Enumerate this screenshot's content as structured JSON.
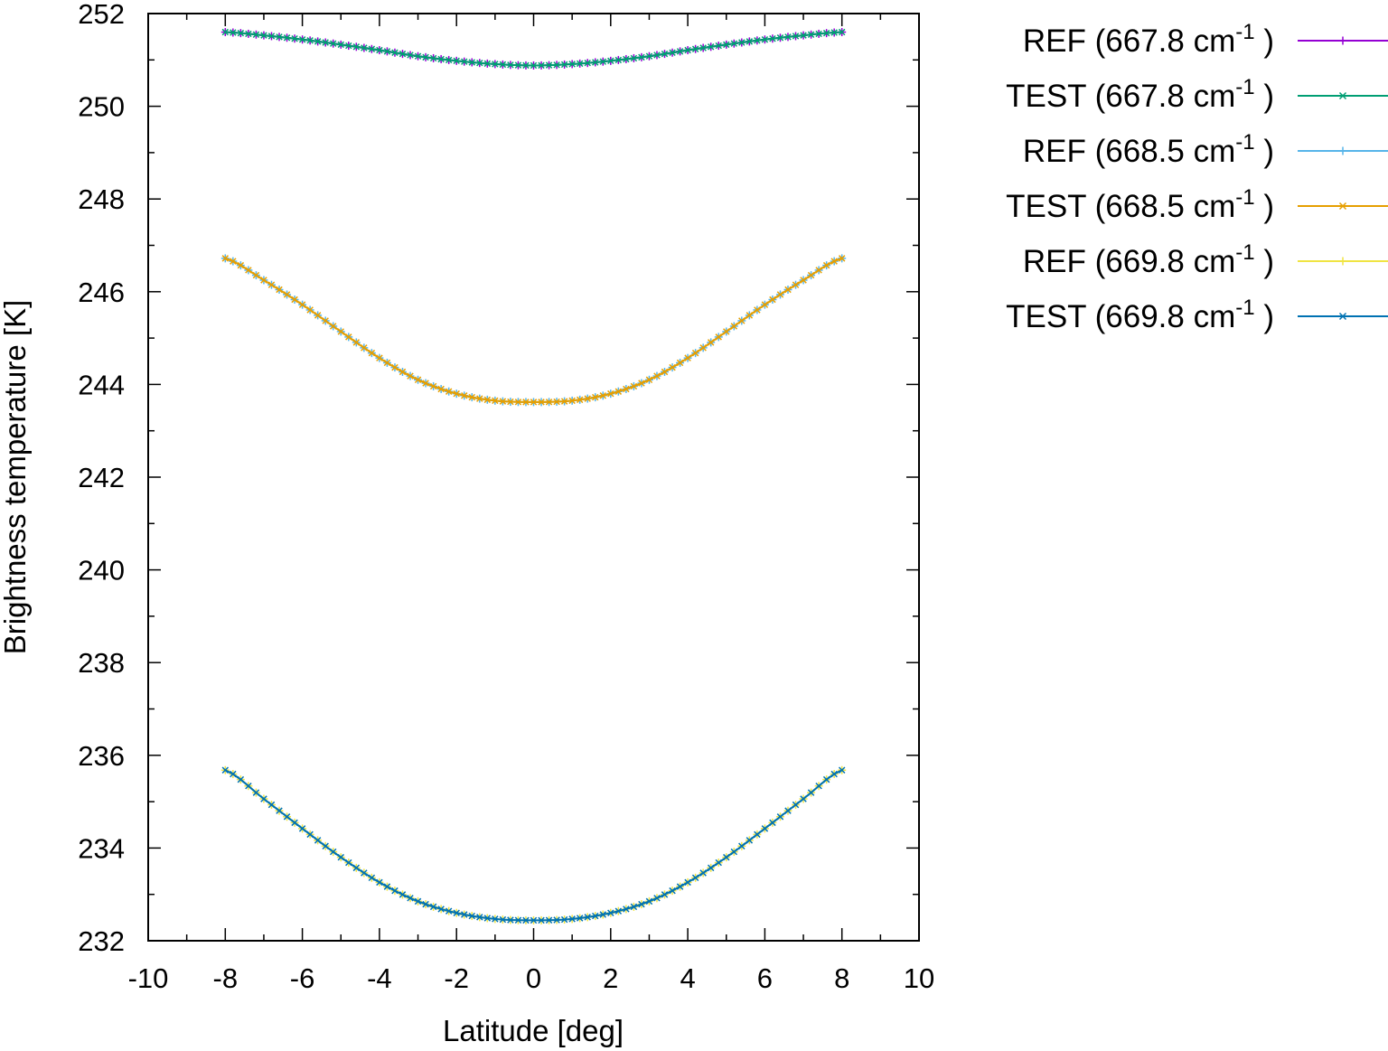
{
  "chart_data": {
    "type": "line",
    "title": "",
    "xlabel": "Latitude [deg]",
    "ylabel": "Brightness temperature [K]",
    "xlim": [
      -10,
      10
    ],
    "ylim": [
      232,
      252
    ],
    "xticks": [
      "-10",
      "-8",
      "-6",
      "-4",
      "-2",
      "0",
      "2",
      "4",
      "6",
      "8",
      "10"
    ],
    "yticks": [
      "232",
      "234",
      "236",
      "238",
      "240",
      "242",
      "244",
      "246",
      "248",
      "250",
      "252"
    ],
    "grid": false,
    "legend_position": "outside-right-top",
    "x": [
      -8,
      -7,
      -6,
      -5,
      -4,
      -3,
      -2,
      -1,
      0,
      1,
      2,
      3,
      4,
      5,
      6,
      7,
      8
    ],
    "series": [
      {
        "name": "REF (667.8 cm",
        "unit_exponent": "-1",
        "color": "#9400d3",
        "marker": "plus",
        "values": [
          251.6,
          251.53,
          251.44,
          251.33,
          251.21,
          251.08,
          250.98,
          250.91,
          250.88,
          250.91,
          250.98,
          251.08,
          251.21,
          251.33,
          251.44,
          251.53,
          251.6
        ]
      },
      {
        "name": "TEST (667.8 cm",
        "unit_exponent": "-1",
        "color": "#009e73",
        "marker": "x",
        "values": [
          251.6,
          251.53,
          251.44,
          251.33,
          251.21,
          251.08,
          250.98,
          250.91,
          250.88,
          250.91,
          250.98,
          251.08,
          251.21,
          251.33,
          251.44,
          251.53,
          251.6
        ]
      },
      {
        "name": "REF (668.5 cm",
        "unit_exponent": "-1",
        "color": "#56b4e9",
        "marker": "plus",
        "values": [
          246.72,
          246.25,
          245.72,
          245.14,
          244.57,
          244.1,
          243.8,
          243.65,
          243.62,
          243.65,
          243.8,
          244.1,
          244.57,
          245.14,
          245.72,
          246.25,
          246.72
        ]
      },
      {
        "name": "TEST (668.5 cm",
        "unit_exponent": "-1",
        "color": "#e69f00",
        "marker": "x",
        "values": [
          246.72,
          246.25,
          245.72,
          245.14,
          244.57,
          244.1,
          243.8,
          243.65,
          243.62,
          243.65,
          243.8,
          244.1,
          244.57,
          245.14,
          245.72,
          246.25,
          246.72
        ]
      },
      {
        "name": "REF (669.8 cm",
        "unit_exponent": "-1",
        "color": "#f0e442",
        "marker": "plus",
        "values": [
          235.68,
          235.06,
          234.42,
          233.8,
          233.26,
          232.85,
          232.6,
          232.47,
          232.44,
          232.47,
          232.6,
          232.85,
          233.26,
          233.8,
          234.42,
          235.06,
          235.68
        ]
      },
      {
        "name": "TEST (669.8 cm",
        "unit_exponent": "-1",
        "color": "#0072b2",
        "marker": "x",
        "values": [
          235.68,
          235.06,
          234.42,
          233.8,
          233.26,
          232.85,
          232.6,
          232.47,
          232.44,
          232.47,
          232.6,
          232.85,
          233.26,
          233.8,
          234.42,
          235.06,
          235.68
        ]
      }
    ]
  }
}
